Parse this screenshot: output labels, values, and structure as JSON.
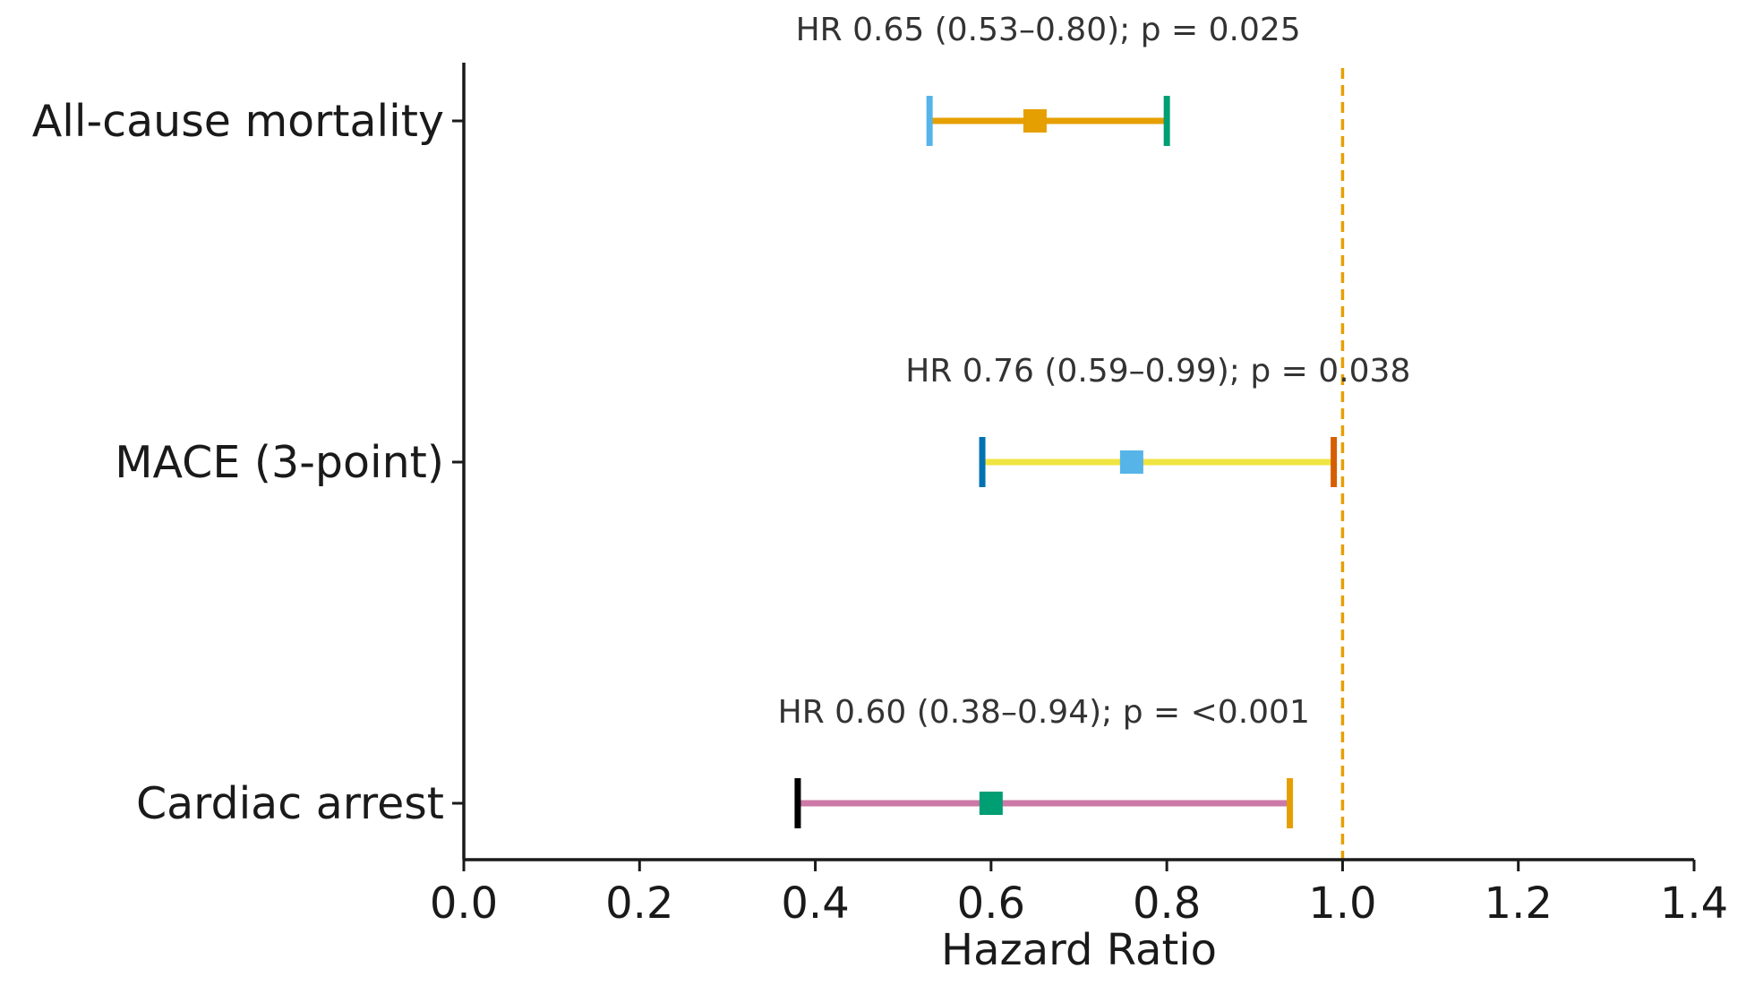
{
  "chart_data": {
    "type": "forest",
    "title": "",
    "xlabel": "Hazard Ratio",
    "ylabel": "",
    "xlim": [
      0.0,
      1.4
    ],
    "x_ticks": [
      0.0,
      0.2,
      0.4,
      0.6,
      0.8,
      1.0,
      1.2,
      1.4
    ],
    "x_tick_labels": [
      "0.0",
      "0.2",
      "0.4",
      "0.6",
      "0.8",
      "1.0",
      "1.2",
      "1.4"
    ],
    "reference_line": {
      "value": 1.0,
      "style": "dashed",
      "color": "#E69F00"
    },
    "grid": false,
    "legend": "none",
    "rows": [
      {
        "label": "All-cause mortality",
        "hr": 0.65,
        "lower": 0.53,
        "upper": 0.8,
        "p": "0.025",
        "annotation": "HR 0.65 (0.53–0.80); p = 0.025",
        "line_color": "#E69F00",
        "marker_color": "#E69F00",
        "lower_cap_color": "#56B4E9",
        "upper_cap_color": "#009E73"
      },
      {
        "label": "MACE (3-point)",
        "hr": 0.76,
        "lower": 0.59,
        "upper": 0.99,
        "p": "0.038",
        "annotation": "HR 0.76 (0.59–0.99); p = 0.038",
        "line_color": "#F0E442",
        "marker_color": "#56B4E9",
        "lower_cap_color": "#0072B2",
        "upper_cap_color": "#D55E00"
      },
      {
        "label": "Cardiac arrest",
        "hr": 0.6,
        "lower": 0.38,
        "upper": 0.94,
        "p": "<0.001",
        "annotation": "HR 0.60 (0.38–0.94); p = <0.001",
        "line_color": "#CC79A7",
        "marker_color": "#009E73",
        "lower_cap_color": "#000000",
        "upper_cap_color": "#E69F00"
      }
    ]
  }
}
